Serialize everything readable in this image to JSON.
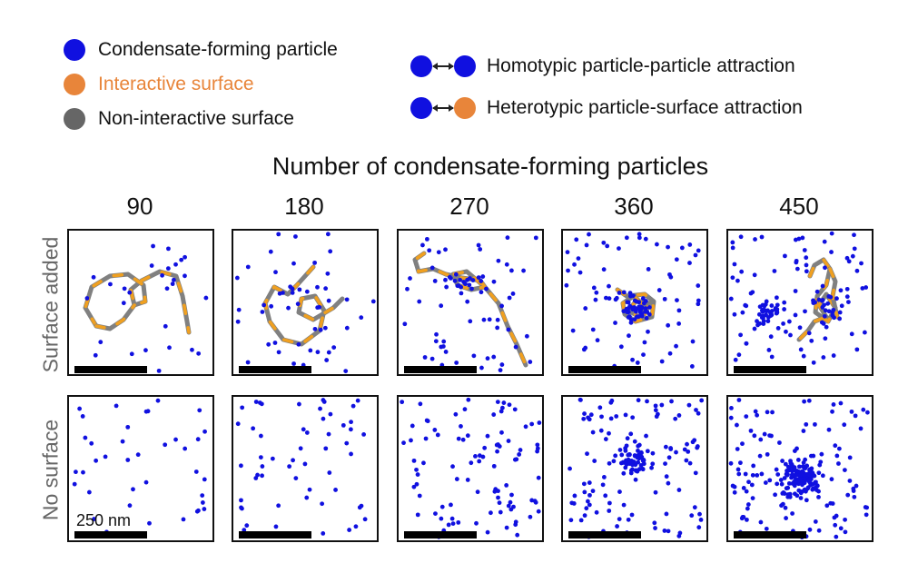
{
  "legend": {
    "items": [
      {
        "label": "Condensate-forming particle",
        "color": "#1010e0"
      },
      {
        "label": "Interactive surface",
        "color": "#e8853a"
      },
      {
        "label": "Non-interactive surface",
        "color": "#666666"
      }
    ],
    "attractions": [
      {
        "label": "Homotypic particle-particle attraction",
        "left_color": "#1010e0",
        "right_color": "#1010e0"
      },
      {
        "label": "Heterotypic particle-surface attraction",
        "left_color": "#1010e0",
        "right_color": "#e8853a"
      }
    ]
  },
  "super_title": "Number of condensate-forming particles",
  "columns": [
    "90",
    "180",
    "270",
    "360",
    "450"
  ],
  "rows": [
    "Surface added",
    "No surface"
  ],
  "scale_label": "250 nm",
  "colors": {
    "particle": "#1010e0",
    "interactive": "#f0a020",
    "noninteractive": "#808080",
    "frame": "#111111"
  }
}
